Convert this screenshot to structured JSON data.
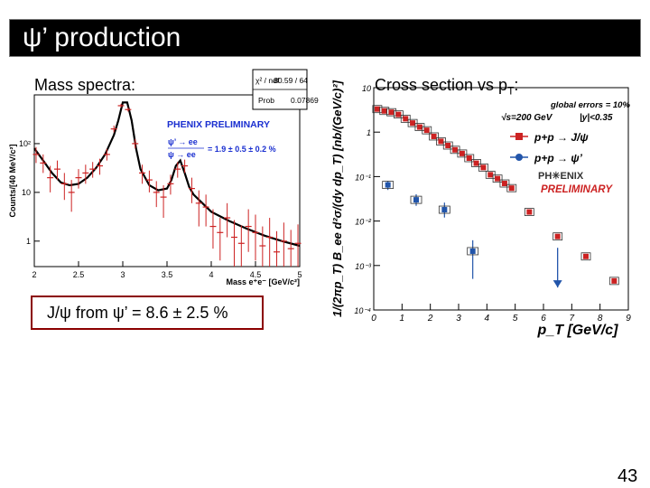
{
  "slide": {
    "title": "ψ’ production",
    "page_number": "43",
    "mass_caption": "Mass spectra:",
    "cross_caption_main": "Cross section vs p",
    "cross_caption_sub": "T",
    "cross_caption_end": ":",
    "result_text": "J/ψ from ψ’ = 8.6 ± 2.5 %"
  },
  "colors": {
    "data_red": "#cc2222",
    "data_blue": "#2255aa",
    "fit_black": "#000000",
    "phenix_blue": "#1a2fd0",
    "box_border": "#8b0000"
  },
  "chart_data": [
    {
      "type": "scatter",
      "title": "",
      "xlabel": "Mass e⁺e⁻ [GeV/c²]",
      "ylabel": "Counts/[40 MeV/c²]",
      "log_y": true,
      "xlim": [
        2,
        5
      ],
      "ylim": [
        0.3,
        1000
      ],
      "x_ticks": [
        "2",
        "2.5",
        "3",
        "3.5",
        "4",
        "4.5",
        "5"
      ],
      "y_ticks": [
        {
          "value": 1,
          "label": "1"
        },
        {
          "value": 10,
          "label": "10"
        },
        {
          "value": 100,
          "label": "10²"
        }
      ],
      "stats_box": {
        "chi2_label": "χ² / ndf",
        "chi2_value": "80.59 / 64",
        "prob_label": "Prob",
        "prob_value": "0.07869"
      },
      "annotation_title": "PHENIX PRELIMINARY",
      "ratio_numerator": "ψ’ → ee",
      "ratio_denominator": "ψ → ee",
      "ratio_value": "= 1.9 ± 0.5 ± 0.2 %",
      "fit_curve": {
        "x": [
          2.0,
          2.1,
          2.2,
          2.3,
          2.4,
          2.5,
          2.6,
          2.7,
          2.8,
          2.9,
          2.95,
          3.0,
          3.05,
          3.1,
          3.15,
          3.2,
          3.3,
          3.4,
          3.5,
          3.55,
          3.6,
          3.65,
          3.7,
          3.75,
          3.8,
          3.9,
          4.0,
          4.2,
          4.4,
          4.6,
          4.8,
          5.0
        ],
        "y": [
          80,
          45,
          25,
          16,
          14,
          15,
          20,
          32,
          60,
          150,
          300,
          700,
          700,
          300,
          80,
          30,
          14,
          11,
          12,
          18,
          35,
          45,
          25,
          13,
          9,
          6,
          4,
          2.6,
          1.8,
          1.3,
          1.0,
          0.8
        ]
      },
      "series": [
        {
          "name": "data",
          "color": "#cc2222",
          "x": [
            2.02,
            2.1,
            2.18,
            2.26,
            2.34,
            2.42,
            2.5,
            2.58,
            2.66,
            2.74,
            2.82,
            2.9,
            2.98,
            3.06,
            3.14,
            3.22,
            3.3,
            3.38,
            3.46,
            3.54,
            3.62,
            3.7,
            3.78,
            3.86,
            3.94,
            4.02,
            4.1,
            4.18,
            4.26,
            4.34,
            4.42,
            4.5,
            4.58,
            4.66,
            4.74,
            4.82,
            4.9,
            4.98
          ],
          "y": [
            60,
            40,
            20,
            30,
            15,
            10,
            20,
            25,
            30,
            35,
            60,
            200,
            600,
            500,
            100,
            25,
            18,
            10,
            8,
            15,
            30,
            35,
            12,
            6,
            5,
            2,
            1.5,
            3,
            1.2,
            0.9,
            2,
            1.5,
            0.8,
            1.2,
            0.6,
            1,
            0.7,
            0.9
          ],
          "err_lo": [
            20,
            15,
            10,
            12,
            8,
            6,
            8,
            10,
            10,
            12,
            15,
            30,
            50,
            45,
            20,
            10,
            8,
            5,
            5,
            6,
            10,
            10,
            6,
            4,
            3,
            1.3,
            1.1,
            1.8,
            0.9,
            0.7,
            1.4,
            1.1,
            0.65,
            0.9,
            0.5,
            0.75,
            0.55,
            0.7
          ],
          "err_hi": [
            25,
            20,
            15,
            15,
            10,
            8,
            10,
            12,
            12,
            14,
            18,
            35,
            55,
            50,
            25,
            12,
            10,
            7,
            6,
            8,
            12,
            12,
            8,
            5,
            4,
            2.5,
            1.5,
            3,
            1.5,
            1.2,
            2.5,
            2,
            1.2,
            1.8,
            1,
            1.4,
            1,
            1.3
          ]
        }
      ]
    },
    {
      "type": "scatter",
      "title": "",
      "xlabel": "p_T [GeV/c]",
      "ylabel": "1/(2πp_T) B_ee d²σ/(dy dp_T) [nb/(GeV/c)²]",
      "log_y": true,
      "xlim": [
        0,
        9
      ],
      "ylim": [
        0.0001,
        10
      ],
      "x_ticks": [
        "0",
        "1",
        "2",
        "3",
        "4",
        "5",
        "6",
        "7",
        "8",
        "9"
      ],
      "y_ticks": [
        {
          "value": 10,
          "label": "10"
        },
        {
          "value": 1,
          "label": "1"
        },
        {
          "value": 0.1,
          "label": "10⁻¹"
        },
        {
          "value": 0.01,
          "label": "10⁻²"
        },
        {
          "value": 0.001,
          "label": "10⁻³"
        },
        {
          "value": 0.0001,
          "label": "10⁻⁴"
        }
      ],
      "legend_header": "global errors = 10%",
      "legend_energy": "√s=200 GeV",
      "legend_rapidity": "|y|<0.35",
      "phenix_logo_text": "PH✳ENIX",
      "preliminary_text": "PRELIMINARY",
      "series": [
        {
          "name": "p+p → J/ψ",
          "color": "#cc2222",
          "x": [
            0.125,
            0.375,
            0.625,
            0.875,
            1.125,
            1.375,
            1.625,
            1.875,
            2.125,
            2.375,
            2.625,
            2.875,
            3.125,
            3.375,
            3.625,
            3.875,
            4.125,
            4.375,
            4.625,
            4.875,
            5.5,
            6.5,
            7.5,
            8.5
          ],
          "y": [
            3.3,
            3.0,
            2.8,
            2.5,
            2.0,
            1.6,
            1.3,
            1.1,
            0.8,
            0.62,
            0.5,
            0.4,
            0.33,
            0.26,
            0.2,
            0.16,
            0.11,
            0.09,
            0.07,
            0.055,
            0.016,
            0.0045,
            0.0016,
            0.00045
          ]
        },
        {
          "name": "p+p → ψ’",
          "color": "#2255aa",
          "x": [
            0.5,
            1.5,
            2.5,
            3.5,
            6.5
          ],
          "y": [
            0.065,
            0.03,
            0.018,
            0.0021,
            0.00032
          ],
          "err_lo": [
            0.015,
            0.008,
            0.006,
            0.0016,
            0.0
          ],
          "err_hi": [
            0.015,
            0.01,
            0.008,
            0.0016,
            0.0
          ],
          "upper_limit": [
            false,
            false,
            false,
            false,
            true
          ]
        }
      ]
    }
  ]
}
